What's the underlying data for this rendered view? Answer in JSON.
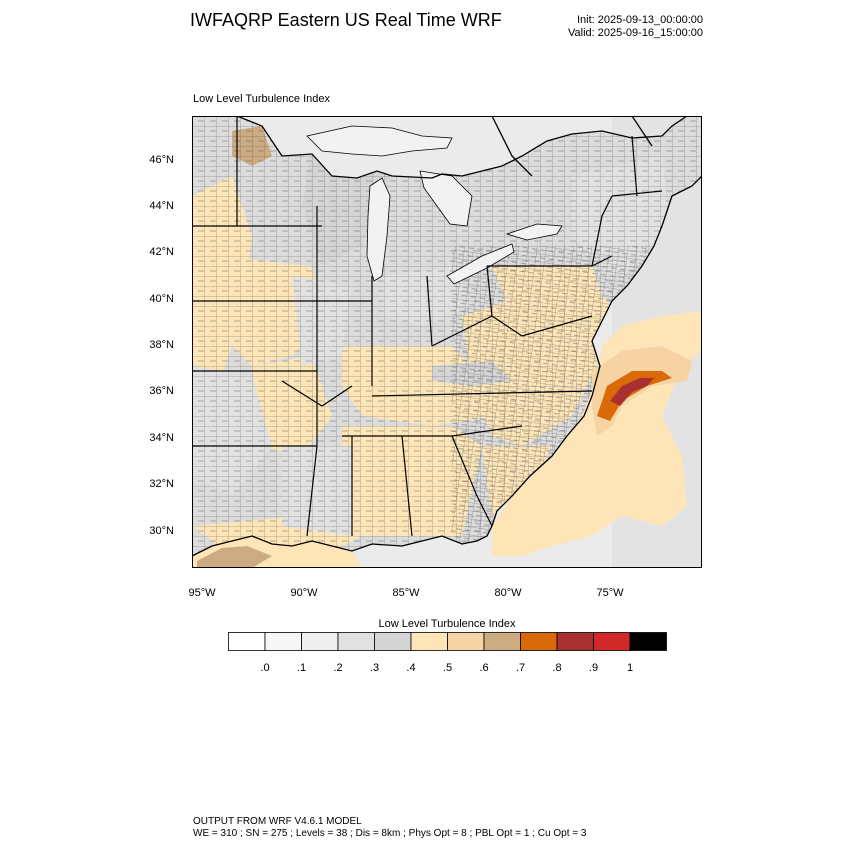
{
  "header": {
    "title": "IWFAQRP Eastern US Real Time WRF",
    "init": "Init: 2025-09-13_00:00:00",
    "valid": "Valid: 2025-09-16_15:00:00"
  },
  "map": {
    "subtitle": "Low Level Turbulence Index",
    "lat_labels": [
      "46°N",
      "44°N",
      "42°N",
      "40°N",
      "38°N",
      "36°N",
      "34°N",
      "32°N",
      "30°N"
    ],
    "lon_labels": [
      "95°W",
      "90°W",
      "85°W",
      "80°W",
      "75°W"
    ],
    "lat_range": [
      28.4,
      47.8
    ],
    "lon_range": [
      -95.4,
      -70.3
    ],
    "features": [
      "Great Lakes",
      "state borders",
      "county borders",
      "coastline",
      "Atlantic Ocean",
      "Gulf of Mexico"
    ]
  },
  "colorbar": {
    "title": "Low Level Turbulence Index",
    "labels": [
      ".0",
      ".1",
      ".2",
      ".3",
      ".4",
      ".5",
      ".6",
      ".7",
      ".8",
      ".9",
      "1"
    ],
    "colors": [
      "#ffffff",
      "#f7f7f7",
      "#efefef",
      "#e1e1e1",
      "#d5d5d5",
      "#fde5b7",
      "#f5d3a2",
      "#ccaa82",
      "#d96a07",
      "#a83030",
      "#d12828",
      "#000000"
    ]
  },
  "footer": {
    "line1": "OUTPUT FROM WRF V4.6.1 MODEL",
    "line2": "WE = 310 ; SN = 275 ; Levels = 38 ; Dis = 8km ; Phys Opt = 8 ; PBL Opt = 1 ; Cu Opt = 3"
  }
}
